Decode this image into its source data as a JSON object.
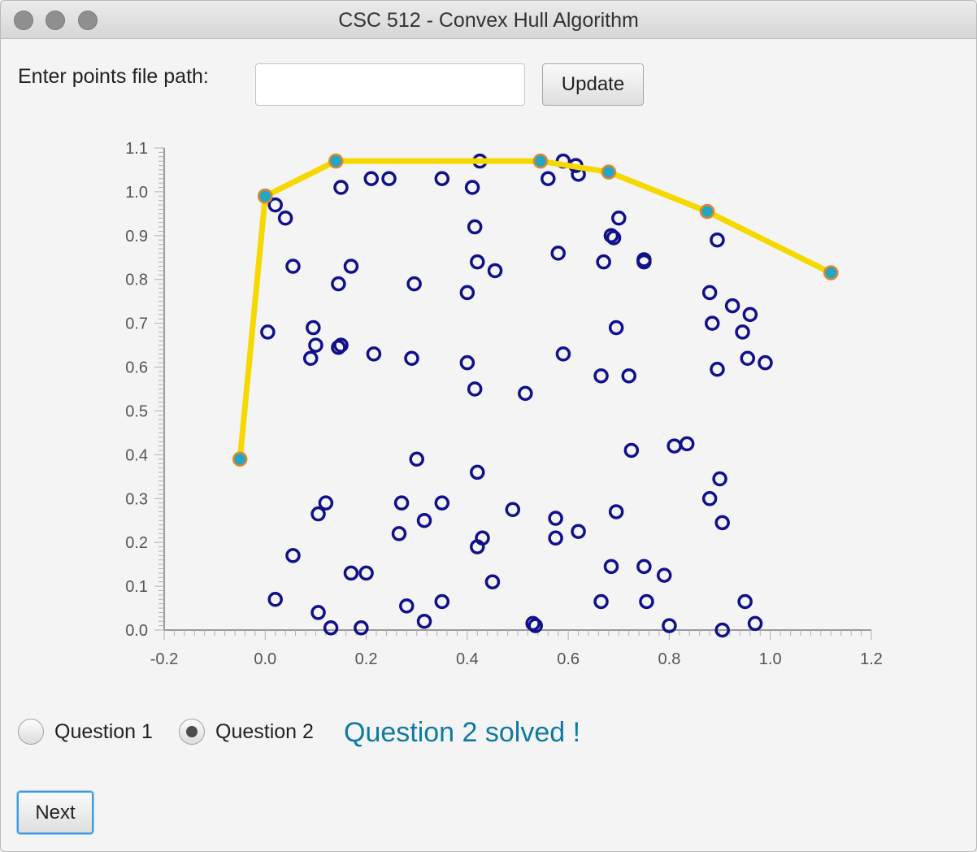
{
  "window": {
    "title": "CSC 512 - Convex Hull Algorithm"
  },
  "form": {
    "file_label": "Enter points file path:",
    "file_value": "",
    "file_placeholder": "",
    "update_label": "Update"
  },
  "chart_data": {
    "type": "scatter",
    "xlim": [
      -0.2,
      1.2
    ],
    "ylim": [
      0.0,
      1.1
    ],
    "xticks": [
      -0.2,
      0.0,
      0.2,
      0.4,
      0.6,
      0.8,
      1.0,
      1.2
    ],
    "yticks": [
      0.0,
      0.1,
      0.2,
      0.3,
      0.4,
      0.5,
      0.6,
      0.7,
      0.8,
      0.9,
      1.0,
      1.1
    ],
    "grid": false,
    "colors": {
      "points": "#10108a",
      "hull_line": "#f5d800",
      "hull_point_fill": "#20a7c8",
      "hull_point_ring": "#e0862a"
    },
    "points": [
      [
        0.0,
        0.99
      ],
      [
        0.02,
        0.97
      ],
      [
        0.04,
        0.94
      ],
      [
        0.055,
        0.83
      ],
      [
        0.15,
        1.01
      ],
      [
        0.145,
        0.79
      ],
      [
        0.17,
        0.83
      ],
      [
        0.21,
        1.03
      ],
      [
        0.245,
        1.03
      ],
      [
        0.35,
        1.03
      ],
      [
        0.41,
        1.01
      ],
      [
        0.425,
        1.07
      ],
      [
        0.415,
        0.92
      ],
      [
        0.42,
        0.84
      ],
      [
        0.455,
        0.82
      ],
      [
        0.4,
        0.77
      ],
      [
        0.295,
        0.79
      ],
      [
        0.58,
        0.86
      ],
      [
        0.56,
        1.03
      ],
      [
        0.59,
        1.07
      ],
      [
        0.615,
        1.06
      ],
      [
        0.62,
        1.04
      ],
      [
        0.685,
        0.9
      ],
      [
        0.69,
        0.895
      ],
      [
        0.7,
        0.94
      ],
      [
        0.67,
        0.84
      ],
      [
        0.75,
        0.845
      ],
      [
        0.75,
        0.84
      ],
      [
        0.895,
        0.89
      ],
      [
        0.88,
        0.77
      ],
      [
        0.925,
        0.74
      ],
      [
        0.96,
        0.72
      ],
      [
        0.885,
        0.7
      ],
      [
        0.945,
        0.68
      ],
      [
        0.955,
        0.62
      ],
      [
        0.99,
        0.61
      ],
      [
        0.895,
        0.595
      ],
      [
        0.005,
        0.68
      ],
      [
        0.095,
        0.69
      ],
      [
        0.1,
        0.65
      ],
      [
        0.09,
        0.62
      ],
      [
        0.145,
        0.645
      ],
      [
        0.15,
        0.65
      ],
      [
        0.215,
        0.63
      ],
      [
        0.29,
        0.62
      ],
      [
        0.4,
        0.61
      ],
      [
        0.415,
        0.55
      ],
      [
        0.515,
        0.54
      ],
      [
        0.59,
        0.63
      ],
      [
        0.665,
        0.58
      ],
      [
        0.72,
        0.58
      ],
      [
        0.695,
        0.69
      ],
      [
        0.725,
        0.41
      ],
      [
        0.81,
        0.42
      ],
      [
        0.835,
        0.425
      ],
      [
        0.3,
        0.39
      ],
      [
        0.42,
        0.36
      ],
      [
        0.9,
        0.345
      ],
      [
        0.88,
        0.3
      ],
      [
        0.105,
        0.265
      ],
      [
        0.12,
        0.29
      ],
      [
        0.27,
        0.29
      ],
      [
        0.265,
        0.22
      ],
      [
        0.315,
        0.25
      ],
      [
        0.35,
        0.29
      ],
      [
        0.49,
        0.275
      ],
      [
        0.575,
        0.255
      ],
      [
        0.575,
        0.21
      ],
      [
        0.62,
        0.225
      ],
      [
        0.695,
        0.27
      ],
      [
        0.905,
        0.245
      ],
      [
        0.42,
        0.19
      ],
      [
        0.43,
        0.21
      ],
      [
        0.055,
        0.17
      ],
      [
        0.17,
        0.13
      ],
      [
        0.2,
        0.13
      ],
      [
        0.45,
        0.11
      ],
      [
        0.685,
        0.145
      ],
      [
        0.75,
        0.145
      ],
      [
        0.79,
        0.125
      ],
      [
        0.02,
        0.07
      ],
      [
        0.105,
        0.04
      ],
      [
        0.13,
        0.005
      ],
      [
        0.19,
        0.005
      ],
      [
        0.28,
        0.055
      ],
      [
        0.315,
        0.02
      ],
      [
        0.35,
        0.065
      ],
      [
        0.53,
        0.015
      ],
      [
        0.535,
        0.01
      ],
      [
        0.665,
        0.065
      ],
      [
        0.755,
        0.065
      ],
      [
        0.8,
        0.01
      ],
      [
        0.905,
        0.0
      ],
      [
        0.95,
        0.065
      ],
      [
        0.97,
        0.015
      ]
    ],
    "hull": [
      [
        -0.05,
        0.39
      ],
      [
        0.0,
        0.99
      ],
      [
        0.14,
        1.07
      ],
      [
        0.545,
        1.07
      ],
      [
        0.68,
        1.045
      ],
      [
        0.875,
        0.955
      ],
      [
        1.12,
        0.815
      ]
    ]
  },
  "question": {
    "option1_label": "Question 1",
    "option2_label": "Question 2",
    "selected": 2,
    "status": "Question 2 solved !"
  },
  "footer": {
    "next_label": "Next"
  }
}
